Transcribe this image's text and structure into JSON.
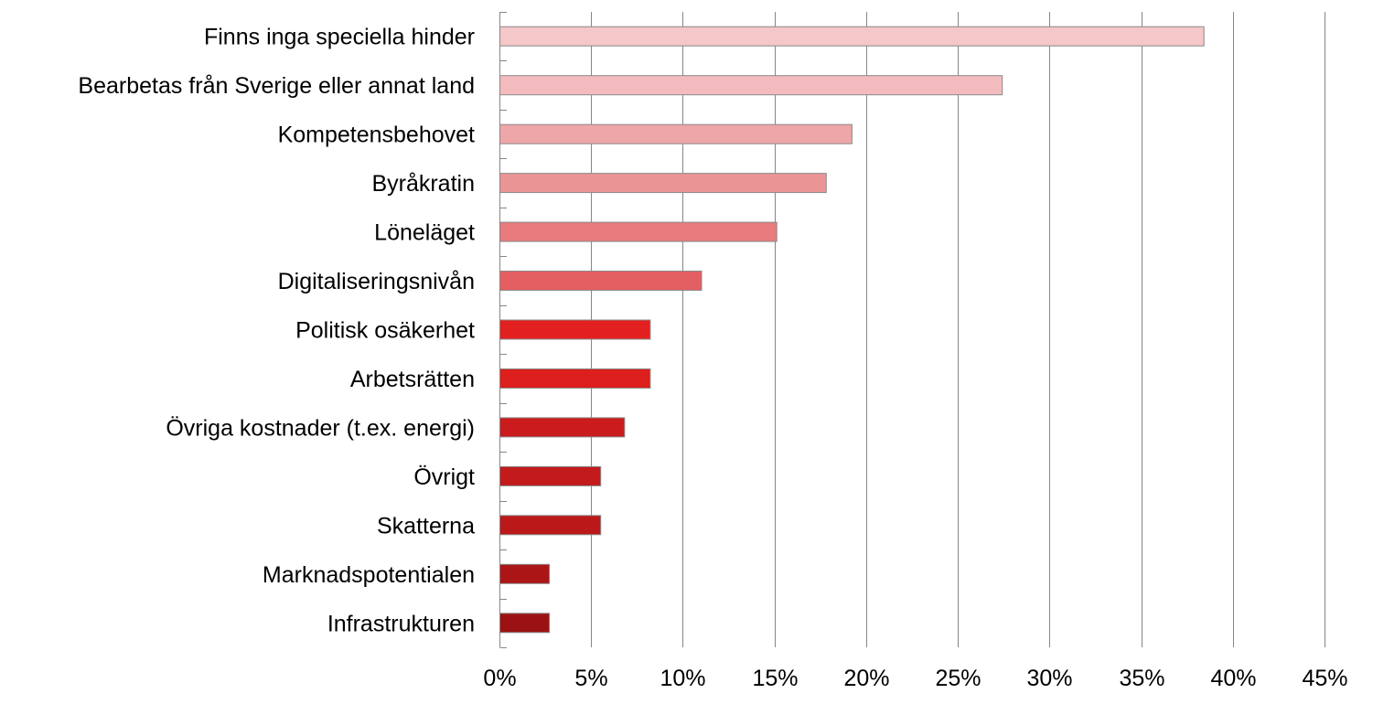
{
  "chart_data": {
    "type": "bar",
    "orientation": "horizontal",
    "title": "",
    "xlabel": "",
    "ylabel": "",
    "categories": [
      "Finns inga speciella hinder",
      "Bearbetas från Sverige eller annat land",
      "Kompetensbehovet",
      "Byråkratin",
      "Löneläget",
      "Digitaliseringsnivån",
      "Politisk osäkerhet",
      "Arbetsrätten",
      "Övriga kostnader (t.ex. energi)",
      "Övrigt",
      "Skatterna",
      "Marknadspotentialen",
      "Infrastrukturen"
    ],
    "values": [
      38.4,
      27.4,
      19.2,
      17.8,
      15.1,
      11.0,
      8.2,
      8.2,
      6.8,
      5.5,
      5.5,
      2.7,
      2.7
    ],
    "bar_colors": [
      "#f4c7c9",
      "#f3bbbe",
      "#efa6a8",
      "#eb9496",
      "#e97a7d",
      "#e45f62",
      "#e2201f",
      "#dc1f1c",
      "#cb1c1d",
      "#c31a1c",
      "#bb181a",
      "#ac1516",
      "#9c1212"
    ],
    "xlim": [
      0,
      45
    ],
    "xticks": [
      0,
      5,
      10,
      15,
      20,
      25,
      30,
      35,
      40,
      45
    ],
    "xtick_labels": [
      "0%",
      "5%",
      "10%",
      "15%",
      "20%",
      "25%",
      "30%",
      "35%",
      "40%",
      "45%"
    ],
    "grid": "vertical",
    "legend": "none"
  }
}
